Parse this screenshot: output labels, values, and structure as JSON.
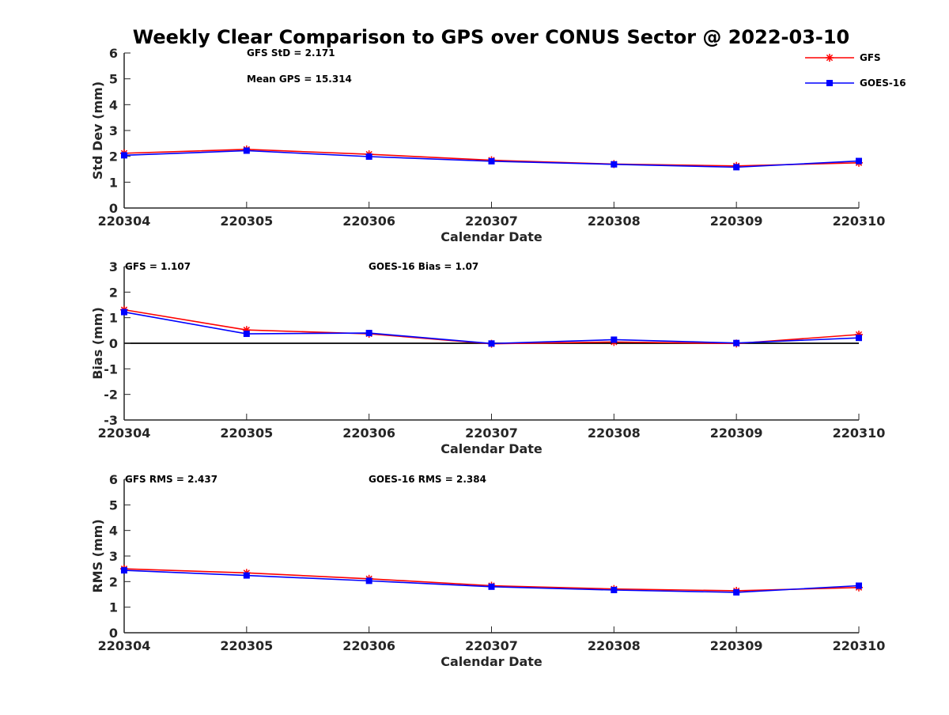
{
  "chart_data": {
    "type": "line",
    "title": "Weekly Clear Comparison to GPS over CONUS Sector @ 2022-03-10",
    "categories": [
      "220304",
      "220305",
      "220306",
      "220307",
      "220308",
      "220309",
      "220310"
    ],
    "legend": {
      "position": "top-right",
      "entries": [
        {
          "name": "GFS",
          "color": "#ff0000",
          "marker": "asterisk"
        },
        {
          "name": "GOES-16",
          "color": "#0000ff",
          "marker": "square"
        }
      ]
    },
    "panels": [
      {
        "id": "std",
        "xlabel": "Calendar Date",
        "ylabel": "Std Dev (mm)",
        "ylim": [
          0,
          6
        ],
        "yticks": [
          "0",
          "1",
          "2",
          "3",
          "4",
          "5",
          "6"
        ],
        "zero_line": false,
        "annotations": [
          "GFS StD = 2.171",
          "Mean GPS = 15.314"
        ],
        "series": [
          {
            "name": "GFS",
            "values": [
              2.12,
              2.27,
              2.08,
              1.85,
              1.7,
              1.63,
              1.75
            ]
          },
          {
            "name": "GOES-16",
            "values": [
              2.04,
              2.22,
              1.99,
              1.81,
              1.69,
              1.58,
              1.82
            ]
          }
        ]
      },
      {
        "id": "bias",
        "xlabel": "Calendar Date",
        "ylabel": "Bias (mm)",
        "ylim": [
          -3,
          3
        ],
        "yticks": [
          "-3",
          "-2",
          "-1",
          "0",
          "1",
          "2",
          "3"
        ],
        "zero_line": true,
        "annotations": [
          "GFS = 1.107",
          "GOES-16 Bias  = 1.07"
        ],
        "series": [
          {
            "name": "GFS",
            "values": [
              1.31,
              0.52,
              0.37,
              -0.02,
              0.05,
              -0.01,
              0.34
            ]
          },
          {
            "name": "GOES-16",
            "values": [
              1.22,
              0.37,
              0.4,
              -0.01,
              0.14,
              0.01,
              0.21
            ]
          }
        ]
      },
      {
        "id": "rms",
        "xlabel": "Calendar Date",
        "ylabel": "RMS (mm)",
        "ylim": [
          0,
          6
        ],
        "yticks": [
          "0",
          "1",
          "2",
          "3",
          "4",
          "5",
          "6"
        ],
        "zero_line": false,
        "annotations": [
          "GFS RMS = 2.437",
          "GOES-16 RMS = 2.384"
        ],
        "series": [
          {
            "name": "GFS",
            "values": [
              2.5,
              2.34,
              2.11,
              1.84,
              1.71,
              1.64,
              1.77
            ]
          },
          {
            "name": "GOES-16",
            "values": [
              2.44,
              2.24,
              2.03,
              1.8,
              1.67,
              1.58,
              1.84
            ]
          }
        ]
      }
    ]
  }
}
